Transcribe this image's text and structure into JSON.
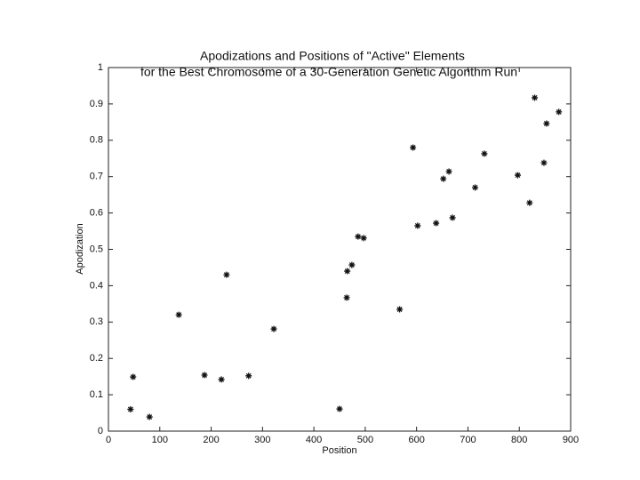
{
  "chart_data": {
    "type": "scatter",
    "title": "Apodizations and Positions of \"Active\" Elements",
    "subtitle": "for the Best Chromosome of a 30-Generation Genetic Algorithm Run",
    "x_label": "Position",
    "y_label": "Apodization",
    "x": [
      43,
      48,
      80,
      137,
      187,
      220,
      230,
      273,
      322,
      450,
      464,
      465,
      474,
      486,
      497,
      567,
      593,
      602,
      638,
      652,
      663,
      670,
      714,
      732,
      797,
      820,
      830,
      848,
      853,
      877
    ],
    "values": [
      0.06,
      0.149,
      0.039,
      0.32,
      0.154,
      0.142,
      0.43,
      0.152,
      0.281,
      0.061,
      0.367,
      0.44,
      0.457,
      0.535,
      0.531,
      0.335,
      0.78,
      0.565,
      0.572,
      0.694,
      0.714,
      0.587,
      0.67,
      0.763,
      0.704,
      0.628,
      0.917,
      0.738,
      0.846,
      0.878
    ],
    "color": "#111111",
    "marker": "asterisk",
    "xlim": [
      0,
      900
    ],
    "xticks": [
      0,
      100,
      200,
      300,
      400,
      500,
      600,
      700,
      800,
      900
    ],
    "ylim": [
      0,
      1
    ],
    "yticks": [
      0,
      0.1,
      0.2,
      0.3,
      0.4,
      0.5,
      0.6,
      0.7,
      0.8,
      0.9,
      1
    ],
    "grid": false
  }
}
